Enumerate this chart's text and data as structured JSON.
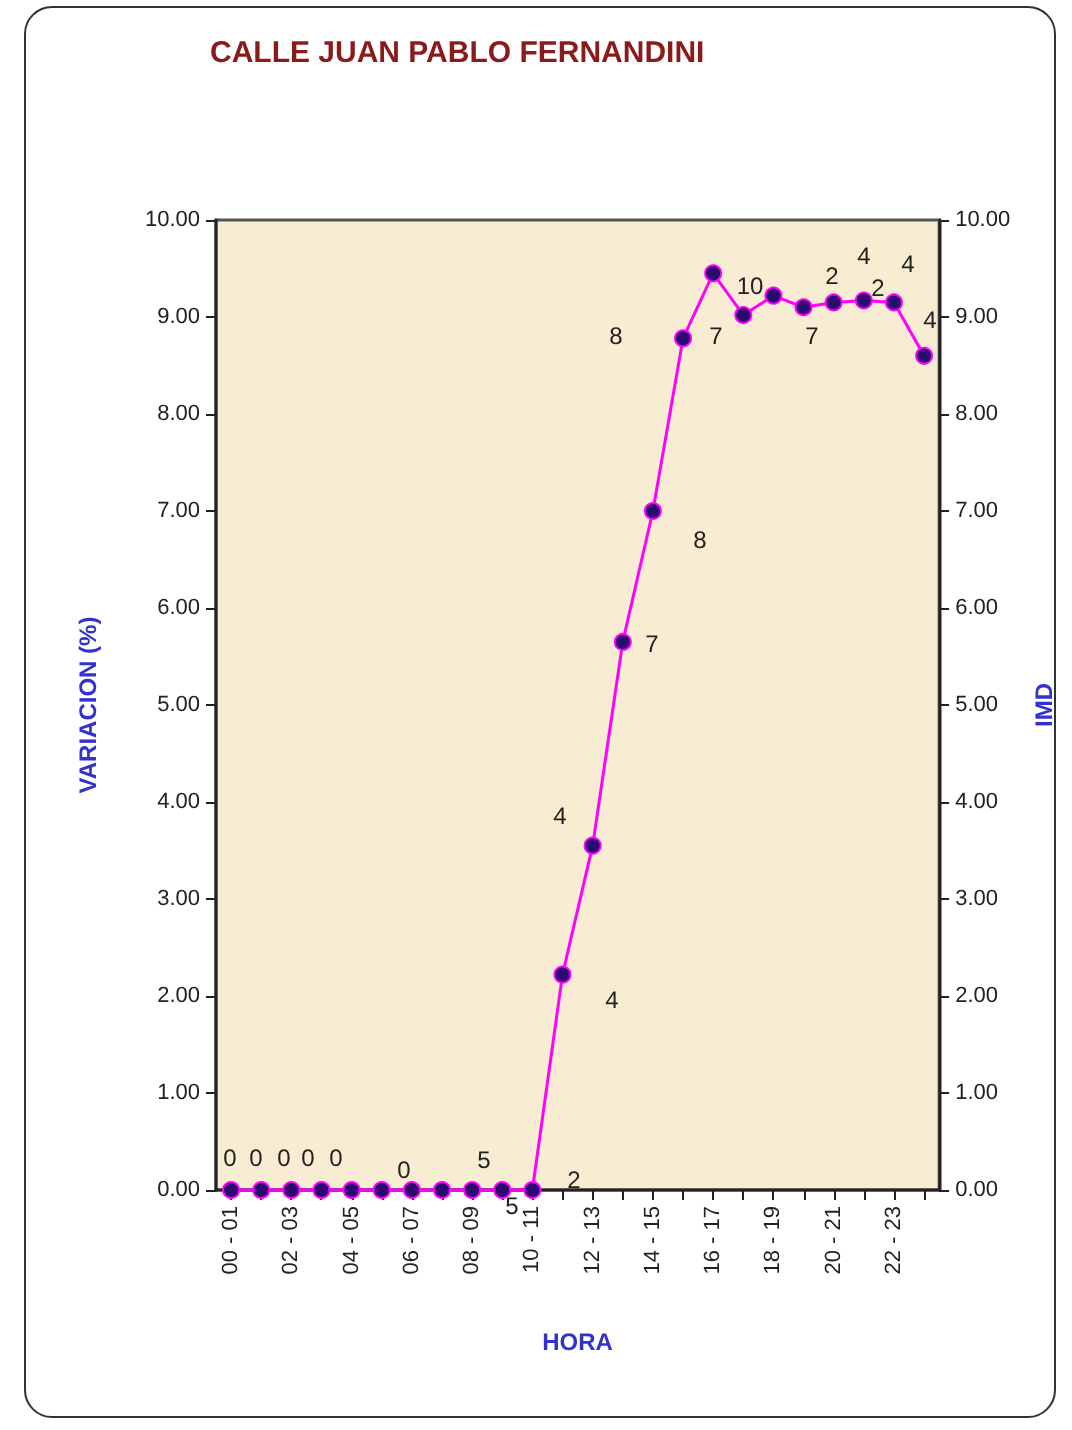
{
  "chart_data": {
    "type": "line",
    "title": "CALLE JUAN PABLO FERNANDINI",
    "xlabel": "HORA",
    "ylabel": "VARIACION (%)",
    "y2label": "IMD",
    "categories": [
      "00 - 01",
      null,
      "02 - 03",
      null,
      "04 - 05",
      null,
      "06 - 07",
      null,
      "08 - 09",
      null,
      "10 - 11",
      null,
      "12 - 13",
      null,
      "14 - 15",
      null,
      "16 - 17",
      null,
      "18 - 19",
      null,
      "20 - 21",
      null,
      "22 - 23",
      null
    ],
    "series": [
      {
        "color": "#ff00ff",
        "values": [
          0,
          0,
          0,
          0,
          0,
          0,
          0,
          0,
          0,
          0,
          0,
          2.22,
          3.55,
          5.65,
          7.0,
          8.78,
          9.45,
          9.02,
          9.22,
          9.1,
          9.15,
          9.17,
          9.15,
          8.6
        ]
      }
    ],
    "marker": "circle",
    "ylim": [
      0,
      10
    ],
    "yticks": [
      {
        "value": 0,
        "label": "0.00"
      },
      {
        "value": 1,
        "label": "1.00"
      },
      {
        "value": 2,
        "label": "2.00"
      },
      {
        "value": 3,
        "label": "3.00"
      },
      {
        "value": 4,
        "label": "4.00"
      },
      {
        "value": 5,
        "label": "5.00"
      },
      {
        "value": 6,
        "label": "6.00"
      },
      {
        "value": 7,
        "label": "7.00"
      },
      {
        "value": 8,
        "label": "8.00"
      },
      {
        "value": 9,
        "label": "9.00"
      },
      {
        "value": 10,
        "label": "10.00"
      }
    ],
    "y2lim": [
      0,
      10
    ],
    "y2ticks": [
      {
        "value": 0,
        "label": "0.00"
      },
      {
        "value": 1,
        "label": "1.00"
      },
      {
        "value": 2,
        "label": "2.00"
      },
      {
        "value": 3,
        "label": "3.00"
      },
      {
        "value": 4,
        "label": "4.00"
      },
      {
        "value": 5,
        "label": "5.00"
      },
      {
        "value": 6,
        "label": "6.00"
      },
      {
        "value": 7,
        "label": "7.00"
      },
      {
        "value": 8,
        "label": "8.00"
      },
      {
        "value": 9,
        "label": "9.00"
      },
      {
        "value": 10,
        "label": "10.00"
      }
    ],
    "grid": false,
    "annotations": [
      "0",
      "0",
      "0",
      "0",
      "0",
      "0",
      "5",
      "5",
      "2",
      "4",
      "4",
      "8",
      "7",
      "8",
      "7",
      "10",
      "7",
      "2",
      "2",
      "4",
      "4",
      "4"
    ]
  }
}
